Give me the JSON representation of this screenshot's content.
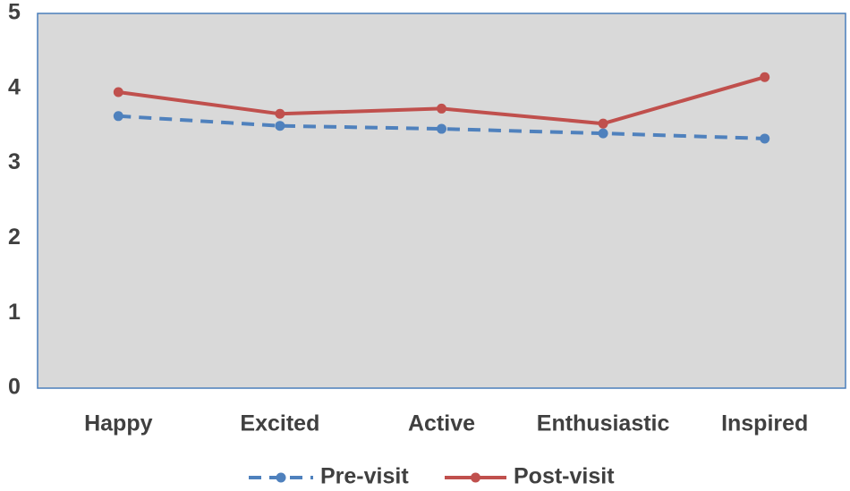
{
  "chart_data": {
    "type": "line",
    "title": "",
    "xlabel": "",
    "ylabel": "",
    "categories": [
      "Happy",
      "Excited",
      "Active",
      "Enthusiastic",
      "Inspired"
    ],
    "ylim": [
      0,
      5
    ],
    "yticks": [
      "0",
      "1",
      "2",
      "3",
      "4",
      "5"
    ],
    "grid": false,
    "plot_background": "#d9d9d9",
    "plot_border_color": "#4a7ebb",
    "legend_position": "bottom",
    "series": [
      {
        "name": "Pre-visit",
        "values": [
          3.63,
          3.5,
          3.46,
          3.4,
          3.33
        ],
        "color": "#4f81bd",
        "line_style": "dashed"
      },
      {
        "name": "Post-visit",
        "values": [
          3.95,
          3.66,
          3.73,
          3.53,
          4.15
        ],
        "color": "#c0504d",
        "line_style": "solid"
      }
    ]
  }
}
